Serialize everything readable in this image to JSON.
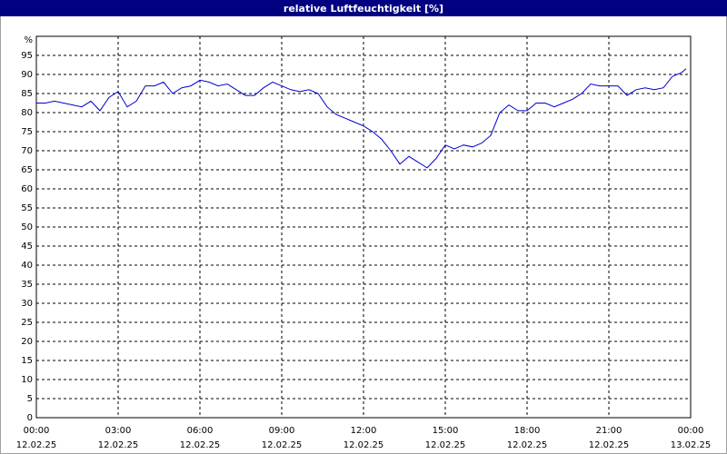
{
  "chart_data": {
    "type": "line",
    "title": "relative Luftfeuchtigkeit [%]",
    "y_label": "%",
    "x": [
      0,
      20,
      40,
      60,
      80,
      100,
      120,
      140,
      160,
      180,
      200,
      220,
      240,
      260,
      280,
      300,
      320,
      340,
      360,
      380,
      400,
      420,
      440,
      460,
      480,
      500,
      520,
      540,
      560,
      580,
      600,
      620,
      640,
      660,
      680,
      700,
      720,
      740,
      760,
      780,
      800,
      820,
      840,
      860,
      880,
      900,
      920,
      940,
      960,
      980,
      1000,
      1020,
      1040,
      1060,
      1080,
      1100,
      1120,
      1140,
      1160,
      1180,
      1200,
      1220,
      1240,
      1260,
      1280,
      1300,
      1320,
      1340,
      1360,
      1380,
      1400,
      1420,
      1430
    ],
    "series": [
      {
        "color": "#0000cc",
        "values": [
          82.5,
          82.5,
          83,
          82.5,
          82,
          81.5,
          83,
          80.5,
          84,
          85.5,
          81.5,
          83,
          87,
          87,
          88,
          85,
          86.5,
          87,
          88.5,
          88,
          87,
          87.5,
          86,
          84.5,
          84.5,
          86.5,
          88,
          87,
          86,
          85.5,
          86,
          85,
          81.5,
          79.5,
          78.5,
          77.5,
          76.5,
          75,
          73,
          70,
          66.5,
          68.5,
          67,
          65.5,
          68,
          71.5,
          70.5,
          71.5,
          71,
          72,
          74,
          80,
          82,
          80.5,
          80.5,
          82.5,
          82.5,
          81.5,
          82.5,
          83.5,
          85,
          87.5,
          87,
          87,
          87,
          84.5,
          86,
          86.5,
          86,
          86.5,
          89.5,
          90.5,
          91.5
        ]
      }
    ],
    "xlim": [
      0,
      1440
    ],
    "xticks": [
      {
        "value": 0,
        "label": [
          "00:00",
          "12.02.25"
        ]
      },
      {
        "value": 180,
        "label": [
          "03:00",
          "12.02.25"
        ]
      },
      {
        "value": 360,
        "label": [
          "06:00",
          "12.02.25"
        ]
      },
      {
        "value": 540,
        "label": [
          "09:00",
          "12.02.25"
        ]
      },
      {
        "value": 720,
        "label": [
          "12:00",
          "12.02.25"
        ]
      },
      {
        "value": 900,
        "label": [
          "15:00",
          "12.02.25"
        ]
      },
      {
        "value": 1080,
        "label": [
          "18:00",
          "12.02.25"
        ]
      },
      {
        "value": 1260,
        "label": [
          "21:00",
          "12.02.25"
        ]
      },
      {
        "value": 1440,
        "label": [
          "00:00",
          "13.02.25"
        ]
      }
    ],
    "ylim": [
      0,
      100
    ],
    "yticks": [
      0,
      5,
      10,
      15,
      20,
      25,
      30,
      35,
      40,
      45,
      50,
      55,
      60,
      65,
      70,
      75,
      80,
      85,
      90,
      95
    ],
    "grid": true
  }
}
